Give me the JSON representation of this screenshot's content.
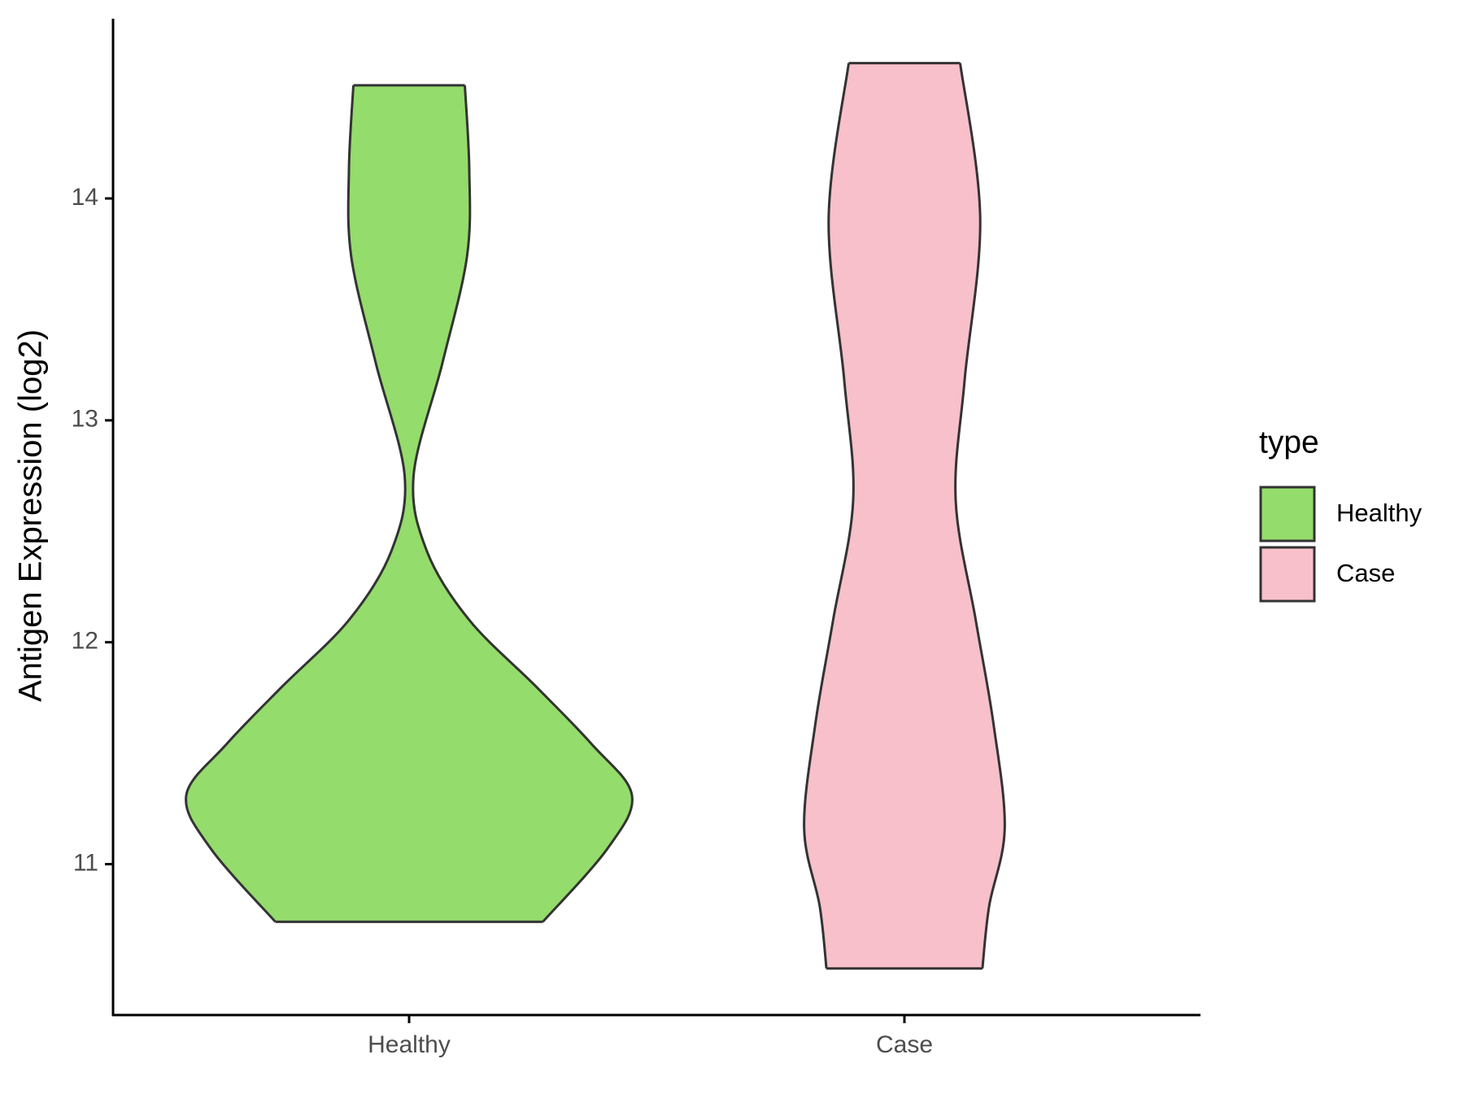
{
  "chart_data": {
    "type": "violin",
    "y_label": "Antigen Expression (log2)",
    "legend_title": "type",
    "categories": [
      "Healthy",
      "Case"
    ],
    "ylim": [
      10.32,
      14.81
    ],
    "yticks": [
      11,
      12,
      13,
      14
    ],
    "series": [
      {
        "name": "Healthy",
        "color": "#94dc6b",
        "y": [
          14.51,
          14.13,
          13.74,
          13.26,
          12.75,
          12.41,
          12.1,
          11.8,
          11.54,
          11.31,
          11.07,
          10.74
        ],
        "density": [
          0.25,
          0.27,
          0.26,
          0.15,
          0.02,
          0.08,
          0.27,
          0.57,
          0.82,
          1.0,
          0.89,
          0.6
        ]
      },
      {
        "name": "Case",
        "color": "#f7c0cb",
        "y": [
          14.61,
          13.91,
          13.18,
          12.64,
          12.1,
          11.63,
          11.16,
          10.81,
          10.53
        ],
        "density": [
          0.25,
          0.34,
          0.27,
          0.23,
          0.32,
          0.4,
          0.45,
          0.38,
          0.35
        ]
      }
    ]
  }
}
